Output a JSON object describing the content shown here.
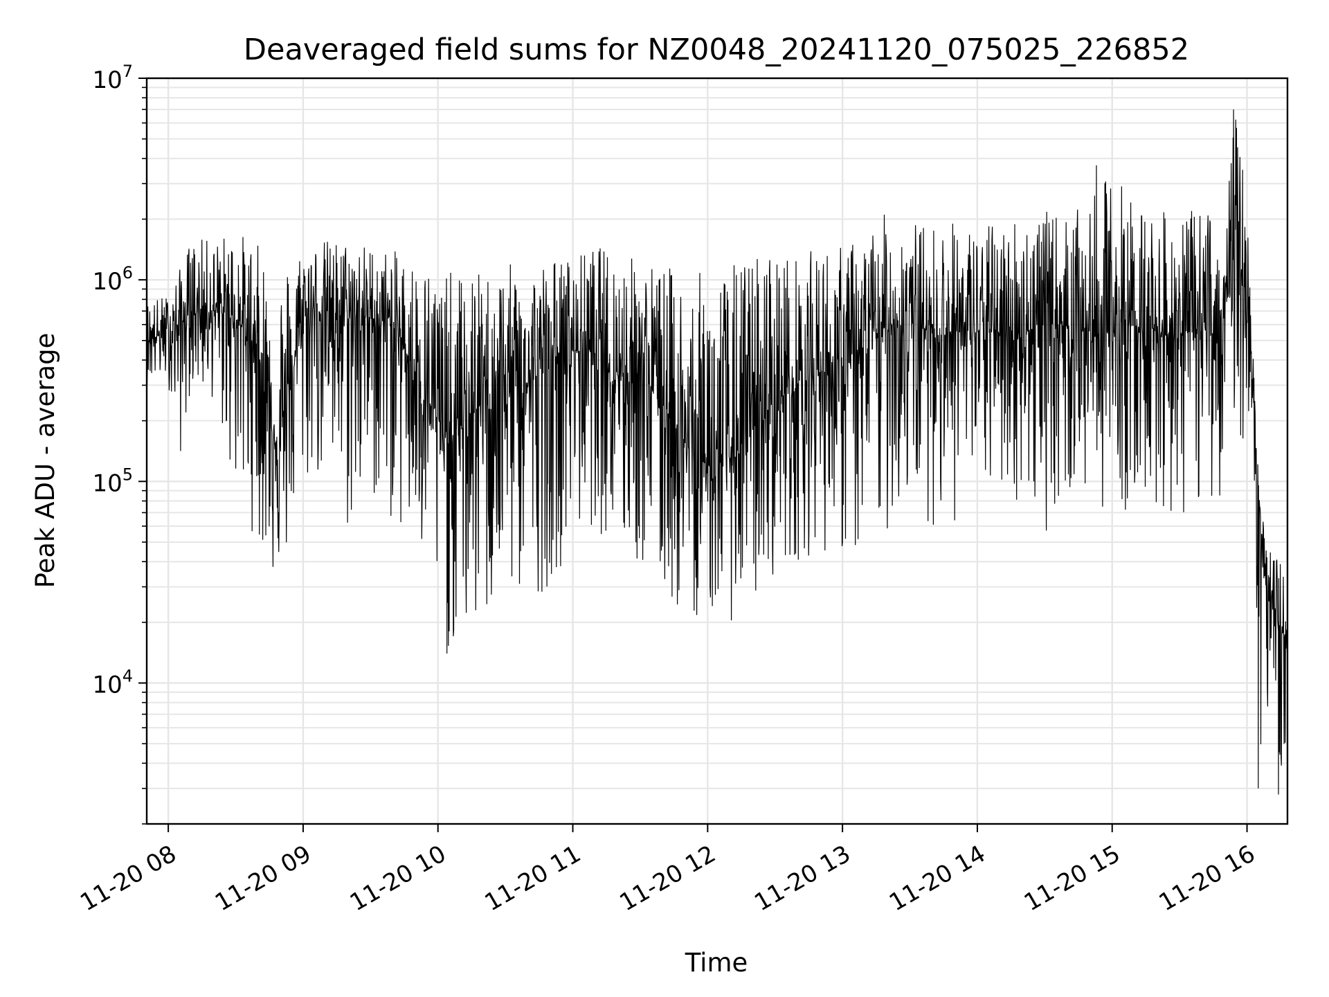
{
  "chart_data": {
    "type": "line",
    "title": "Deaveraged field sums for NZ0048_20241120_075025_226852",
    "xlabel": "Time",
    "ylabel": "Peak ADU - average",
    "yscale": "log",
    "ylim": [
      2000,
      10000000
    ],
    "xlim": [
      "2024-11-20T07:50:25",
      "2024-11-20T16:18:00"
    ],
    "grid": true,
    "line_color": "#000000",
    "grid_color": "#e6e6e6",
    "x_ticks": [
      {
        "value": "2024-11-20T08:00:00",
        "label": "11-20 08"
      },
      {
        "value": "2024-11-20T09:00:00",
        "label": "11-20 09"
      },
      {
        "value": "2024-11-20T10:00:00",
        "label": "11-20 10"
      },
      {
        "value": "2024-11-20T11:00:00",
        "label": "11-20 11"
      },
      {
        "value": "2024-11-20T12:00:00",
        "label": "11-20 12"
      },
      {
        "value": "2024-11-20T13:00:00",
        "label": "11-20 13"
      },
      {
        "value": "2024-11-20T14:00:00",
        "label": "11-20 14"
      },
      {
        "value": "2024-11-20T15:00:00",
        "label": "11-20 15"
      },
      {
        "value": "2024-11-20T16:00:00",
        "label": "11-20 16"
      }
    ],
    "y_ticks": [
      {
        "value": 10000,
        "base": "10",
        "exp": "4"
      },
      {
        "value": 100000,
        "base": "10",
        "exp": "5"
      },
      {
        "value": 1000000,
        "base": "10",
        "exp": "6"
      },
      {
        "value": 10000000,
        "base": "10",
        "exp": "7"
      }
    ],
    "series": [
      {
        "x": [
          "2024-11-20T07:50:25",
          "2024-11-20T08:00:00",
          "2024-11-20T08:06:00",
          "2024-11-20T08:10:00",
          "2024-11-20T08:20:00",
          "2024-11-20T08:30:00",
          "2024-11-20T08:40:00",
          "2024-11-20T08:45:00",
          "2024-11-20T08:50:00",
          "2024-11-20T09:00:00",
          "2024-11-20T09:10:00",
          "2024-11-20T09:20:00",
          "2024-11-20T09:30:00",
          "2024-11-20T09:40:00",
          "2024-11-20T09:50:00",
          "2024-11-20T10:00:00",
          "2024-11-20T10:05:00",
          "2024-11-20T10:20:00",
          "2024-11-20T10:30:00",
          "2024-11-20T10:40:00",
          "2024-11-20T10:50:00",
          "2024-11-20T11:00:00",
          "2024-11-20T11:10:00",
          "2024-11-20T11:20:00",
          "2024-11-20T11:30:00",
          "2024-11-20T11:40:00",
          "2024-11-20T11:50:00",
          "2024-11-20T12:00:00",
          "2024-11-20T12:10:00",
          "2024-11-20T12:20:00",
          "2024-11-20T12:30:00",
          "2024-11-20T12:40:00",
          "2024-11-20T12:50:00",
          "2024-11-20T13:00:00",
          "2024-11-20T13:10:00",
          "2024-11-20T13:20:00",
          "2024-11-20T13:30:00",
          "2024-11-20T13:40:00",
          "2024-11-20T13:50:00",
          "2024-11-20T14:00:00",
          "2024-11-20T14:10:00",
          "2024-11-20T14:20:00",
          "2024-11-20T14:30:00",
          "2024-11-20T14:40:00",
          "2024-11-20T14:50:00",
          "2024-11-20T15:00:00",
          "2024-11-20T15:10:00",
          "2024-11-20T15:20:00",
          "2024-11-20T15:30:00",
          "2024-11-20T15:40:00",
          "2024-11-20T15:50:00",
          "2024-11-20T15:55:00",
          "2024-11-20T16:00:00",
          "2024-11-20T16:03:00",
          "2024-11-20T16:06:00",
          "2024-11-20T16:10:00",
          "2024-11-20T16:14:00",
          "2024-11-20T16:18:00"
        ],
        "center": [
          500000,
          550000,
          600000,
          700000,
          700000,
          650000,
          450000,
          200000,
          150000,
          700000,
          700000,
          650000,
          650000,
          600000,
          350000,
          200000,
          150000,
          250000,
          300000,
          300000,
          400000,
          450000,
          450000,
          350000,
          350000,
          250000,
          150000,
          120000,
          130000,
          180000,
          250000,
          300000,
          350000,
          350000,
          450000,
          600000,
          600000,
          550000,
          550000,
          550000,
          550000,
          550000,
          600000,
          600000,
          550000,
          550000,
          600000,
          550000,
          550000,
          550000,
          650000,
          1500000,
          800000,
          300000,
          60000,
          25000,
          20000,
          15000
        ],
        "max": [
          800000,
          850000,
          1200000,
          1600000,
          1600000,
          1800000,
          1500000,
          1300000,
          1200000,
          1500000,
          1600000,
          1600000,
          1500000,
          1400000,
          1300000,
          1200000,
          1100000,
          1100000,
          1200000,
          1200000,
          1300000,
          1300000,
          1500000,
          1400000,
          1300000,
          1200000,
          1100000,
          1100000,
          1200000,
          1400000,
          1500000,
          1300000,
          1500000,
          1500000,
          1700000,
          2200000,
          2000000,
          1900000,
          2000000,
          1800000,
          2000000,
          2200000,
          2200000,
          2100000,
          2400000,
          3600000,
          2600000,
          2200000,
          2100000,
          2300000,
          2300000,
          7000000,
          2500000,
          400000,
          70000,
          50000,
          45000,
          30000
        ],
        "min": [
          300000,
          300000,
          120000,
          300000,
          250000,
          85000,
          48000,
          35000,
          30000,
          90000,
          100000,
          50000,
          80000,
          60000,
          40000,
          22000,
          14000,
          17000,
          25000,
          25000,
          30000,
          50000,
          60000,
          40000,
          35000,
          25000,
          20000,
          22000,
          20000,
          23000,
          35000,
          40000,
          45000,
          42000,
          35000,
          55000,
          80000,
          60000,
          60000,
          85000,
          85000,
          75000,
          55000,
          80000,
          80000,
          70000,
          70000,
          75000,
          60000,
          75000,
          85000,
          200000,
          120000,
          100000,
          3000,
          3000,
          3000,
          5000
        ],
        "peaks": [
          {
            "x": "2024-11-20T15:54:00",
            "y": 7000000
          },
          {
            "x": "2024-11-20T14:53:00",
            "y": 3700000
          },
          {
            "x": "2024-11-20T10:04:00",
            "y": 14000
          },
          {
            "x": "2024-11-20T16:05:00",
            "y": 3000
          },
          {
            "x": "2024-11-20T16:14:00",
            "y": 2800
          }
        ]
      }
    ]
  }
}
